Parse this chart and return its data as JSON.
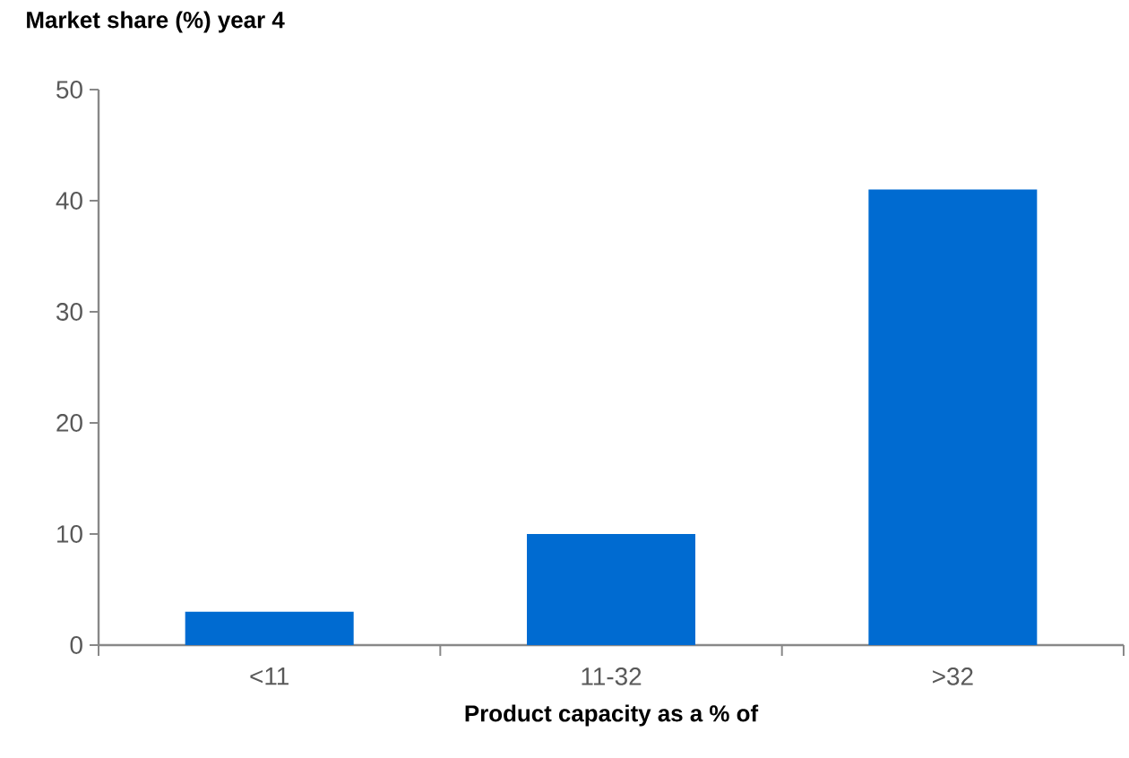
{
  "chart_data": {
    "type": "bar",
    "title": "Market share (%) year 4",
    "xlabel": "Product capacity as a % of",
    "categories": [
      "<11",
      "11-32",
      ">32"
    ],
    "values": [
      3,
      10,
      41
    ],
    "color": "#006bd1",
    "ylim": [
      0,
      50
    ],
    "yticks": [
      0,
      10,
      20,
      30,
      40,
      50
    ],
    "grid": false
  }
}
